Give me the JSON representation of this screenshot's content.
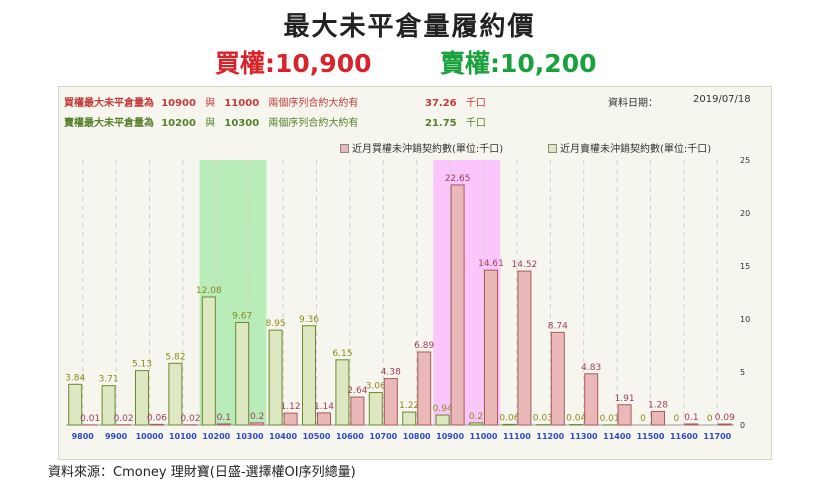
{
  "title": "最大未平倉量履約價",
  "subtitle": {
    "call_label": "買權",
    "call_value": ":10,900",
    "put_label": "賣權",
    "put_value": ":10,200"
  },
  "info": {
    "call_prefix": "買權最大未平倉量為",
    "call_strike1": "10900",
    "call_join": "與",
    "call_strike2": "11000",
    "call_mid": "兩個序列合約大約有",
    "call_amount": "37.26",
    "call_unit": "千口",
    "put_prefix": "賣權最大未平倉量為",
    "put_strike1": "10200",
    "put_join": "與",
    "put_strike2": "10300",
    "put_mid": "兩個序列合約大約有",
    "put_amount": "21.75",
    "put_unit": "千口",
    "date_label": "資料日期：",
    "date_value": "2019/07/18"
  },
  "source": "資料來源：Cmoney 理財寶(日盛-選擇權OI序列總量)",
  "colors": {
    "call_fill": "#eab8b8",
    "call_stroke": "#a85a5a",
    "call_label": "#a23c5e",
    "put_fill": "#dde8c2",
    "put_stroke": "#6a8a2a",
    "put_label": "#8c8a1a",
    "highlight_put": "#b8ecb8",
    "highlight_call": "#fbc6fb",
    "x_tick": "#2c4cc8"
  },
  "chart_data": {
    "type": "bar",
    "categories": [
      "9800",
      "9900",
      "10000",
      "10100",
      "10200",
      "10300",
      "10400",
      "10500",
      "10600",
      "10700",
      "10800",
      "10900",
      "11000",
      "11100",
      "11200",
      "11300",
      "11400",
      "11500",
      "11600",
      "11700"
    ],
    "series": [
      {
        "name": "近月賣權未沖銷契約數(單位:千口)",
        "values": [
          3.84,
          3.71,
          5.13,
          5.82,
          12.08,
          9.67,
          8.95,
          9.36,
          6.15,
          3.06,
          1.22,
          0.94,
          0.2,
          0.06,
          0.03,
          0.04,
          0.01,
          0,
          0,
          0
        ],
        "labels": [
          "3.84",
          "3.71",
          "5.13",
          "5.82",
          "12.08",
          "9.67",
          "8.95",
          "9.36",
          "6.15",
          "3.06",
          "1.22",
          "0.94",
          "0.2",
          "0.06",
          "0.03",
          "0.04",
          "0.01",
          "0",
          "0",
          "0"
        ]
      },
      {
        "name": "近月買權未沖銷契約數(單位:千口)",
        "values": [
          0.01,
          0.02,
          0.06,
          0.02,
          0.1,
          0.2,
          1.12,
          1.14,
          2.64,
          4.38,
          6.89,
          22.65,
          14.61,
          14.52,
          8.74,
          4.83,
          1.91,
          1.28,
          0.1,
          0.09
        ],
        "labels": [
          "0.01",
          "0.02",
          "0.06",
          "0.02",
          "0.1",
          "0.2",
          "1.12",
          "1.14",
          "2.64",
          "4.38",
          "6.89",
          "22.65",
          "14.61",
          "14.52",
          "8.74",
          "4.83",
          "1.91",
          "1.28",
          "0.1",
          "0.09"
        ]
      }
    ],
    "legend": [
      "近月買權未沖銷契約數(單位:千口)",
      "近月賣權未沖銷契約數(單位:千口)"
    ],
    "legend_position": "top-right",
    "y_ticks": [
      "0",
      "5",
      "10",
      "15",
      "20",
      "25"
    ],
    "ylim": [
      0,
      25
    ],
    "y_axis_side": "right",
    "grid": true,
    "highlight_put_strikes": [
      "10200",
      "10300"
    ],
    "highlight_call_strikes": [
      "10900",
      "11000"
    ]
  }
}
